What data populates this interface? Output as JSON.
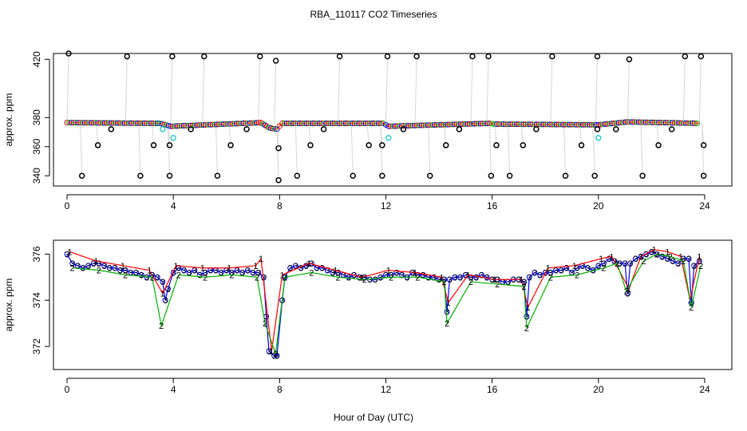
{
  "chart_data": {
    "title": "RBA_110117  CO2 Timeseries",
    "xlabel": "Hour of Day (UTC)",
    "colors": {
      "raw_points": "#000000",
      "raw_lines": "#9a9a9a",
      "cal_points": "#33cccc",
      "channel1": "#ff0000",
      "channel2": "#00b000",
      "channel3": "#0000ff",
      "mean_line": "#0000cc",
      "axis": "#000000"
    },
    "panels": [
      {
        "type": "scatter",
        "ylabel": "approx. ppm",
        "xlim": [
          0,
          24
        ],
        "ylim": [
          333,
          424
        ],
        "xticks": [
          0,
          4,
          8,
          12,
          16,
          20,
          24
        ],
        "yticks": [
          340,
          360,
          380,
          420
        ],
        "baseline_segments": [
          {
            "x": [
              0,
              3.5,
              3.9,
              7.3,
              7.6,
              7.9,
              8.1,
              11.9,
              12.1,
              15.9,
              16.1,
              20.0,
              21.1,
              23.8
            ],
            "y": [
              376.5,
              376,
              374,
              376.5,
              373,
              372,
              376,
              376,
              374,
              376,
              375.5,
              375,
              377,
              376
            ]
          }
        ],
        "spikes": [
          {
            "x": 0.0,
            "y": 424
          },
          {
            "x": 0.5,
            "y": 340
          },
          {
            "x": 1.1,
            "y": 361
          },
          {
            "x": 1.6,
            "y": 372
          },
          {
            "x": 2.2,
            "y": 422
          },
          {
            "x": 2.7,
            "y": 340
          },
          {
            "x": 3.2,
            "y": 361
          },
          {
            "x": 3.8,
            "y": 340
          },
          {
            "x": 3.8,
            "y": 361
          },
          {
            "x": 3.9,
            "y": 422
          },
          {
            "x": 4.6,
            "y": 372
          },
          {
            "x": 5.1,
            "y": 422
          },
          {
            "x": 5.6,
            "y": 340
          },
          {
            "x": 6.1,
            "y": 361
          },
          {
            "x": 6.7,
            "y": 372
          },
          {
            "x": 7.2,
            "y": 422
          },
          {
            "x": 7.8,
            "y": 419
          },
          {
            "x": 7.9,
            "y": 359
          },
          {
            "x": 7.9,
            "y": 337
          },
          {
            "x": 8.6,
            "y": 340
          },
          {
            "x": 9.1,
            "y": 361
          },
          {
            "x": 9.6,
            "y": 372
          },
          {
            "x": 10.2,
            "y": 422
          },
          {
            "x": 10.7,
            "y": 340
          },
          {
            "x": 11.3,
            "y": 361
          },
          {
            "x": 11.8,
            "y": 340
          },
          {
            "x": 11.8,
            "y": 361
          },
          {
            "x": 12.0,
            "y": 422
          },
          {
            "x": 12.6,
            "y": 372
          },
          {
            "x": 13.1,
            "y": 422
          },
          {
            "x": 13.6,
            "y": 340
          },
          {
            "x": 14.2,
            "y": 361
          },
          {
            "x": 14.7,
            "y": 372
          },
          {
            "x": 15.2,
            "y": 422
          },
          {
            "x": 15.8,
            "y": 422
          },
          {
            "x": 15.9,
            "y": 340
          },
          {
            "x": 16.1,
            "y": 361
          },
          {
            "x": 16.6,
            "y": 340
          },
          {
            "x": 17.1,
            "y": 361
          },
          {
            "x": 17.6,
            "y": 372
          },
          {
            "x": 18.2,
            "y": 422
          },
          {
            "x": 18.7,
            "y": 340
          },
          {
            "x": 19.3,
            "y": 361
          },
          {
            "x": 19.8,
            "y": 340
          },
          {
            "x": 19.9,
            "y": 372
          },
          {
            "x": 19.9,
            "y": 422
          },
          {
            "x": 20.6,
            "y": 372
          },
          {
            "x": 21.1,
            "y": 420
          },
          {
            "x": 21.6,
            "y": 340
          },
          {
            "x": 22.2,
            "y": 361
          },
          {
            "x": 22.7,
            "y": 372
          },
          {
            "x": 23.2,
            "y": 422
          },
          {
            "x": 23.8,
            "y": 422
          },
          {
            "x": 23.9,
            "y": 361
          },
          {
            "x": 23.9,
            "y": 340
          }
        ],
        "cal_points": [
          {
            "x": 3.6,
            "y": 372
          },
          {
            "x": 4.0,
            "y": 366
          },
          {
            "x": 12.1,
            "y": 366
          },
          {
            "x": 20.0,
            "y": 366
          }
        ]
      },
      {
        "type": "line",
        "ylabel": "approx. ppm",
        "xlim": [
          0,
          24
        ],
        "ylim": [
          371.0,
          376.6
        ],
        "xticks": [
          0,
          4,
          8,
          12,
          16,
          20,
          24
        ],
        "yticks": [
          372,
          374,
          376
        ],
        "series": [
          {
            "name": "3",
            "x": [
              0.0,
              0.2,
              0.4,
              0.6,
              0.8,
              1.0,
              1.2,
              1.4,
              1.6,
              1.8,
              2.0,
              2.2,
              2.4,
              2.6,
              2.8,
              3.0,
              3.2,
              3.4,
              3.6,
              3.7,
              3.8,
              4.0,
              4.2,
              4.4,
              4.6,
              4.8,
              5.0,
              5.2,
              5.4,
              5.6,
              5.8,
              6.0,
              6.2,
              6.4,
              6.6,
              6.8,
              7.0,
              7.2,
              7.4,
              7.5,
              7.6,
              7.8,
              7.9,
              8.1,
              8.2,
              8.4,
              8.6,
              8.8,
              9.0,
              9.2,
              9.4,
              9.6,
              9.8,
              10.0,
              10.2,
              10.4,
              10.6,
              10.8,
              11.0,
              11.2,
              11.4,
              11.6,
              11.8,
              12.0,
              12.2,
              12.4,
              12.6,
              12.8,
              13.0,
              13.2,
              13.4,
              13.6,
              13.8,
              14.0,
              14.2,
              14.3,
              14.4,
              14.6,
              14.8,
              15.0,
              15.2,
              15.4,
              15.6,
              15.8,
              16.0,
              16.2,
              16.4,
              16.6,
              16.8,
              17.0,
              17.2,
              17.3,
              17.4,
              17.6,
              17.8,
              18.0,
              18.2,
              18.4,
              18.6,
              18.8,
              19.0,
              19.2,
              19.4,
              19.6,
              19.8,
              20.0,
              20.2,
              20.4,
              20.6,
              20.8,
              21.0,
              21.1,
              21.2,
              21.4,
              21.6,
              21.8,
              22.0,
              22.2,
              22.4,
              22.6,
              22.8,
              23.0,
              23.2,
              23.4,
              23.5,
              23.6,
              23.8
            ],
            "values": [
              376.0,
              375.6,
              375.5,
              375.4,
              375.5,
              375.6,
              375.6,
              375.5,
              375.4,
              375.4,
              375.3,
              375.3,
              375.2,
              375.2,
              375.1,
              375.0,
              375.1,
              375.0,
              374.8,
              374.0,
              374.5,
              375.2,
              375.4,
              375.3,
              375.2,
              375.3,
              375.1,
              375.2,
              375.3,
              375.3,
              375.2,
              375.3,
              375.2,
              375.3,
              375.2,
              375.3,
              375.2,
              375.2,
              375.0,
              373.3,
              371.8,
              371.6,
              371.6,
              374.0,
              375.0,
              375.4,
              375.5,
              375.4,
              375.5,
              375.6,
              375.4,
              375.4,
              375.3,
              375.2,
              375.2,
              375.1,
              375.0,
              375.1,
              375.0,
              375.0,
              374.9,
              374.9,
              375.0,
              375.1,
              375.1,
              375.2,
              375.1,
              375.0,
              375.2,
              375.1,
              375.1,
              375.0,
              375.0,
              374.9,
              374.9,
              373.5,
              374.9,
              375.0,
              375.0,
              375.1,
              375.0,
              375.0,
              375.1,
              375.0,
              374.9,
              374.9,
              374.8,
              374.8,
              374.9,
              374.9,
              374.8,
              373.3,
              375.0,
              375.2,
              375.1,
              375.2,
              375.2,
              375.3,
              375.3,
              375.4,
              375.2,
              375.4,
              375.5,
              375.4,
              375.3,
              375.5,
              375.6,
              375.8,
              375.7,
              375.6,
              375.6,
              374.3,
              375.6,
              375.8,
              375.9,
              376.0,
              376.1,
              376.0,
              375.9,
              375.8,
              375.7,
              375.6,
              375.8,
              375.8,
              373.9,
              375.5,
              375.7
            ]
          },
          {
            "name": "1",
            "x": [
              0.1,
              1.1,
              2.1,
              3.1,
              3.6,
              4.1,
              5.1,
              6.1,
              7.1,
              7.3,
              7.7,
              8.1,
              9.1,
              10.1,
              11.1,
              12.1,
              13.1,
              14.1,
              14.35,
              15.1,
              16.1,
              17.1,
              17.35,
              18.1,
              19.1,
              20.1,
              20.5,
              21.15,
              21.6,
              22.1,
              22.6,
              23.1,
              23.45,
              23.8
            ],
            "values": [
              376.1,
              375.7,
              375.5,
              375.3,
              374.3,
              375.5,
              375.4,
              375.4,
              375.5,
              375.8,
              371.8,
              375.1,
              375.6,
              375.3,
              375.0,
              375.3,
              375.2,
              375.0,
              373.9,
              375.1,
              374.9,
              374.9,
              373.7,
              375.4,
              375.5,
              375.8,
              375.9,
              374.5,
              375.9,
              376.2,
              376.1,
              375.9,
              374.0,
              375.9
            ]
          },
          {
            "name": "2",
            "x": [
              0.2,
              1.2,
              2.2,
              3.2,
              3.55,
              4.2,
              5.2,
              6.2,
              7.15,
              7.45,
              7.85,
              8.2,
              9.2,
              10.2,
              11.2,
              12.2,
              13.2,
              14.2,
              14.3,
              15.2,
              16.2,
              17.2,
              17.3,
              18.2,
              19.2,
              20.2,
              20.7,
              21.05,
              21.7,
              22.2,
              22.7,
              23.2,
              23.5,
              23.85
            ],
            "values": [
              375.4,
              375.3,
              375.1,
              375.0,
              372.9,
              375.1,
              375.0,
              375.1,
              375.0,
              373.0,
              371.7,
              375.0,
              375.2,
              375.0,
              374.9,
              375.0,
              375.0,
              374.8,
              373.0,
              374.8,
              374.7,
              374.6,
              372.8,
              375.0,
              375.1,
              375.4,
              375.6,
              374.4,
              375.7,
              376.0,
              375.9,
              375.7,
              373.7,
              375.5
            ]
          }
        ]
      }
    ]
  }
}
